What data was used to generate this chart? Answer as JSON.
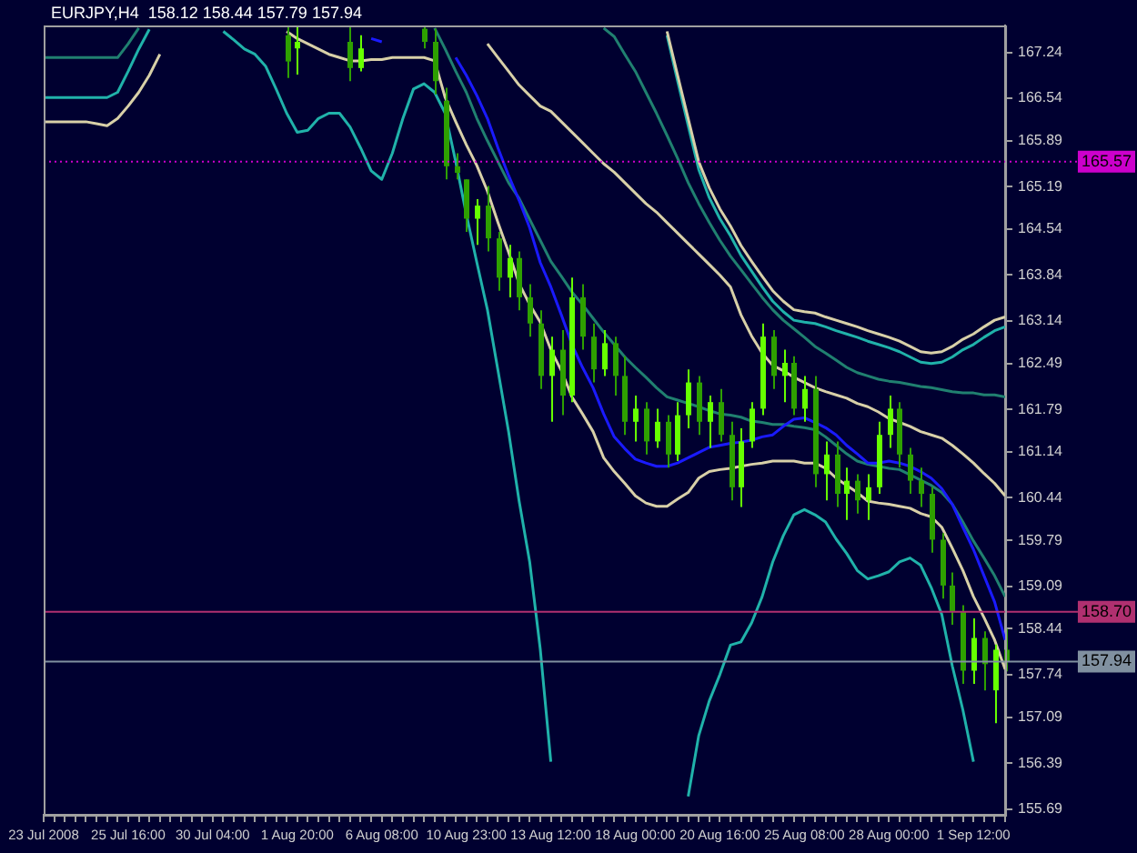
{
  "chart_data": {
    "type": "candlestick",
    "title": "EURJPY,H4  158.12 158.44 157.79 157.94",
    "colors": [
      null,
      null,
      null,
      null,
      null,
      null,
      null,
      null,
      null,
      null,
      null,
      null,
      null,
      null,
      null,
      null,
      null,
      null,
      null,
      null,
      null,
      null,
      null,
      "#2ea000",
      "#66ff00",
      null,
      null,
      null,
      null,
      "#2ea000",
      "#66ff00",
      null,
      null,
      null,
      null,
      null,
      "#2ea000",
      "#2ea000",
      "#2ea000",
      "#2ea000",
      "#2ea000",
      "#66ff00",
      "#2ea000",
      "#2ea000",
      "#66ff00",
      "#2ea000",
      "#2ea000",
      "#2ea000",
      "#66ff00",
      "#2ea000",
      "#66ff00",
      "#2ea000",
      "#2ea000",
      "#66ff00",
      "#2ea000",
      "#2ea000",
      "#66ff00",
      "#2ea000",
      "#66ff00",
      "#2ea000",
      "#66ff00",
      "#66ff00",
      "#2ea000",
      "#66ff00",
      "#2ea000",
      "#2ea000",
      "#66ff00",
      "#66ff00",
      "#66ff00",
      "#2ea000",
      "#66ff00",
      "#2ea000",
      "#66ff00",
      "#2ea000",
      "#66ff00",
      "#2ea000",
      "#66ff00",
      "#2ea000",
      "#66ff00",
      "#66ff00",
      "#66ff00",
      "#2ea000",
      "#2ea000",
      "#2ea000",
      "#2ea000",
      "#2ea000",
      "#2ea000",
      "#2ea000",
      "#66ff00",
      "#2ea000",
      "#66ff00",
      "#2ea000"
    ],
    "marker": "none",
    "categories": [
      "23 Jul 2008",
      null,
      null,
      null,
      null,
      null,
      null,
      null,
      "25 Jul 16:00",
      null,
      null,
      null,
      null,
      null,
      null,
      null,
      "30 Jul 04:00",
      null,
      null,
      null,
      null,
      null,
      null,
      null,
      "1 Aug 20:00",
      null,
      null,
      null,
      null,
      null,
      null,
      null,
      "6 Aug 08:00",
      null,
      null,
      null,
      null,
      null,
      null,
      null,
      "10 Aug 23:00",
      null,
      null,
      null,
      null,
      null,
      null,
      null,
      "13 Aug 12:00",
      null,
      null,
      null,
      null,
      null,
      null,
      null,
      "18 Aug 00:00",
      null,
      null,
      null,
      null,
      null,
      null,
      null,
      "20 Aug 16:00",
      null,
      null,
      null,
      null,
      null,
      null,
      null,
      "25 Aug 08:00",
      null,
      null,
      null,
      null,
      null,
      null,
      null,
      "28 Aug 00:00",
      null,
      null,
      null,
      null,
      null,
      null,
      null,
      "1 Sep 12:00",
      null,
      null,
      null
    ],
    "ohlc": [
      null,
      null,
      null,
      null,
      null,
      null,
      null,
      null,
      null,
      null,
      null,
      null,
      null,
      null,
      null,
      null,
      null,
      null,
      null,
      null,
      null,
      null,
      null,
      [
        167.5,
        167.64,
        166.85,
        167.1
      ],
      [
        167.3,
        167.64,
        166.9,
        167.4
      ],
      null,
      null,
      null,
      null,
      [
        167.4,
        167.64,
        166.8,
        167.0
      ],
      [
        167.0,
        167.5,
        166.95,
        167.3
      ],
      null,
      null,
      null,
      null,
      null,
      [
        167.6,
        167.64,
        167.3,
        167.4
      ],
      [
        167.4,
        167.6,
        166.6,
        166.8
      ],
      [
        166.5,
        166.7,
        165.3,
        165.5
      ],
      [
        165.5,
        165.7,
        165.3,
        165.4
      ],
      [
        165.3,
        165.3,
        164.5,
        164.7
      ],
      [
        164.7,
        165.0,
        164.3,
        164.9
      ],
      [
        164.9,
        165.2,
        164.2,
        164.4
      ],
      [
        164.4,
        164.5,
        163.6,
        163.8
      ],
      [
        163.8,
        164.3,
        163.5,
        164.1
      ],
      [
        164.1,
        164.2,
        163.3,
        163.5
      ],
      [
        163.5,
        163.7,
        162.9,
        163.1
      ],
      [
        163.1,
        163.3,
        162.1,
        162.3
      ],
      [
        162.3,
        162.9,
        161.6,
        162.7
      ],
      [
        162.7,
        163.0,
        161.7,
        162.0
      ],
      [
        162.0,
        163.8,
        161.9,
        163.5
      ],
      [
        163.5,
        163.7,
        162.7,
        162.9
      ],
      [
        162.9,
        163.1,
        162.2,
        162.4
      ],
      [
        162.4,
        163.0,
        162.3,
        162.8
      ],
      [
        162.8,
        162.9,
        162.0,
        162.3
      ],
      [
        162.3,
        162.6,
        161.4,
        161.6
      ],
      [
        161.6,
        162.0,
        161.3,
        161.8
      ],
      [
        161.8,
        161.9,
        161.1,
        161.3
      ],
      [
        161.3,
        161.8,
        161.2,
        161.6
      ],
      [
        161.6,
        161.7,
        160.9,
        161.1
      ],
      [
        161.1,
        161.9,
        161.0,
        161.7
      ],
      [
        161.7,
        162.4,
        161.5,
        162.2
      ],
      [
        162.2,
        162.3,
        161.4,
        161.6
      ],
      [
        161.6,
        162.0,
        161.2,
        161.9
      ],
      [
        161.9,
        162.1,
        161.3,
        161.4
      ],
      [
        161.4,
        161.6,
        160.4,
        160.6
      ],
      [
        160.6,
        161.5,
        160.3,
        161.3
      ],
      [
        161.3,
        161.9,
        161.2,
        161.8
      ],
      [
        161.8,
        163.1,
        161.7,
        162.9
      ],
      [
        162.9,
        163.0,
        162.1,
        162.3
      ],
      [
        162.3,
        162.7,
        161.9,
        162.5
      ],
      [
        162.5,
        162.6,
        161.7,
        161.8
      ],
      [
        161.8,
        162.3,
        161.6,
        162.1
      ],
      [
        162.1,
        162.3,
        160.6,
        160.8
      ],
      [
        160.8,
        161.3,
        160.4,
        161.1
      ],
      [
        161.1,
        161.3,
        160.3,
        160.5
      ],
      [
        160.5,
        160.9,
        160.1,
        160.7
      ],
      [
        160.7,
        160.8,
        160.2,
        160.4
      ],
      [
        160.4,
        160.8,
        160.1,
        160.6
      ],
      [
        160.6,
        161.6,
        160.5,
        161.4
      ],
      [
        161.4,
        162.0,
        161.2,
        161.8
      ],
      [
        161.8,
        161.9,
        160.9,
        161.1
      ],
      [
        161.1,
        161.2,
        160.5,
        160.7
      ],
      [
        160.7,
        160.9,
        160.3,
        160.5
      ],
      [
        160.5,
        160.6,
        159.6,
        159.8
      ],
      [
        159.8,
        159.9,
        158.9,
        159.1
      ],
      [
        159.1,
        159.3,
        158.5,
        158.7
      ],
      [
        158.7,
        158.8,
        157.6,
        157.8
      ],
      [
        157.8,
        158.6,
        157.6,
        158.3
      ],
      [
        158.3,
        158.4,
        157.5,
        157.9
      ],
      [
        157.5,
        158.2,
        157.0,
        158.12
      ],
      [
        158.12,
        158.44,
        157.79,
        157.94
      ]
    ],
    "series": [
      {
        "type": "line",
        "color": "#1a1aff",
        "values": [
          null,
          null,
          null,
          null,
          null,
          null,
          null,
          null,
          null,
          null,
          null,
          null,
          null,
          null,
          null,
          null,
          null,
          null,
          null,
          null,
          null,
          null,
          null,
          null,
          null,
          null,
          null,
          null,
          null,
          null,
          null,
          167.45,
          167.4,
          null,
          null,
          null,
          null,
          null,
          null,
          167.16,
          166.89,
          166.58,
          166.23,
          165.78,
          165.36,
          164.98,
          164.56,
          164.03,
          163.66,
          163.23,
          162.78,
          162.43,
          162.12,
          161.72,
          161.37,
          161.19,
          161.03,
          160.97,
          160.92,
          160.92,
          160.97,
          161.05,
          161.13,
          161.21,
          161.24,
          161.27,
          161.29,
          161.32,
          161.37,
          161.4,
          161.53,
          161.64,
          161.66,
          161.59,
          161.51,
          161.4,
          161.24,
          161.11,
          160.97,
          160.97,
          161.0,
          160.97,
          160.92,
          160.84,
          160.74,
          160.58,
          160.34,
          159.99,
          159.65,
          159.25,
          158.85,
          158.27
        ]
      },
      {
        "type": "line",
        "color": "#d8d0a8",
        "values": [
          166.18,
          166.18,
          166.18,
          166.18,
          166.18,
          166.15,
          166.12,
          166.23,
          166.42,
          166.63,
          166.89,
          167.21,
          null,
          null,
          null,
          null,
          null,
          null,
          null,
          null,
          null,
          null,
          null,
          167.56,
          167.45,
          167.37,
          167.29,
          167.21,
          167.16,
          167.11,
          167.11,
          167.13,
          167.13,
          167.16,
          167.16,
          167.16,
          167.16,
          167.11,
          166.55,
          166.18,
          165.83,
          165.51,
          165.12,
          164.64,
          164.19,
          163.71,
          163.39,
          163.12,
          162.7,
          162.38,
          161.98,
          161.72,
          161.45,
          161.05,
          160.84,
          160.66,
          160.47,
          160.36,
          160.31,
          160.31,
          160.42,
          160.52,
          160.74,
          160.84,
          160.87,
          160.89,
          160.92,
          160.95,
          160.97,
          161.0,
          161.0,
          161.0,
          160.97,
          160.97,
          160.89,
          160.74,
          160.63,
          160.52,
          160.39,
          160.36,
          160.34,
          160.31,
          160.28,
          160.2,
          160.15,
          159.99,
          159.67,
          159.33,
          158.93,
          158.61,
          158.27,
          157.82
        ]
      },
      {
        "type": "line",
        "color": "#d8d0a8",
        "values": [
          null,
          null,
          null,
          null,
          null,
          null,
          null,
          null,
          null,
          null,
          null,
          null,
          null,
          null,
          null,
          null,
          null,
          null,
          null,
          null,
          null,
          null,
          null,
          null,
          null,
          null,
          null,
          null,
          null,
          null,
          null,
          null,
          null,
          null,
          null,
          null,
          null,
          null,
          null,
          null,
          null,
          null,
          167.37,
          167.16,
          166.95,
          166.74,
          166.58,
          166.42,
          166.34,
          166.18,
          166.02,
          165.86,
          165.7,
          165.54,
          165.41,
          165.25,
          165.09,
          164.93,
          164.8,
          164.64,
          164.48,
          164.32,
          164.16,
          164.0,
          163.84,
          163.66,
          163.23,
          162.91,
          162.65,
          162.46,
          162.38,
          162.28,
          162.2,
          162.12,
          162.06,
          162.01,
          161.96,
          161.88,
          161.83,
          161.75,
          161.65,
          161.59,
          161.53,
          161.45,
          161.4,
          161.35,
          161.24,
          161.11,
          160.97,
          160.81,
          160.66,
          160.47
        ]
      },
      {
        "type": "line",
        "color": "#d8d0a8",
        "values": [
          null,
          null,
          null,
          null,
          null,
          null,
          null,
          null,
          null,
          null,
          null,
          null,
          null,
          null,
          null,
          null,
          null,
          null,
          null,
          null,
          null,
          null,
          null,
          null,
          null,
          null,
          null,
          null,
          null,
          null,
          null,
          null,
          null,
          null,
          null,
          null,
          null,
          null,
          null,
          null,
          null,
          null,
          null,
          null,
          null,
          null,
          null,
          null,
          null,
          null,
          null,
          null,
          null,
          null,
          null,
          null,
          null,
          null,
          null,
          167.56,
          166.89,
          166.23,
          165.57,
          165.17,
          164.85,
          164.59,
          164.29,
          164.05,
          163.82,
          163.6,
          163.44,
          163.31,
          163.28,
          163.26,
          163.2,
          163.15,
          163.1,
          163.05,
          162.99,
          162.94,
          162.89,
          162.83,
          162.75,
          162.67,
          162.65,
          162.67,
          162.75,
          162.86,
          162.94,
          163.05,
          163.15,
          163.2
        ]
      },
      {
        "type": "line",
        "color": "#20b2aa",
        "values": [
          null,
          null,
          null,
          null,
          null,
          null,
          null,
          null,
          null,
          null,
          null,
          null,
          null,
          null,
          null,
          null,
          null,
          null,
          null,
          null,
          null,
          null,
          null,
          null,
          null,
          null,
          null,
          null,
          null,
          null,
          null,
          null,
          null,
          null,
          null,
          null,
          null,
          null,
          null,
          null,
          null,
          null,
          null,
          null,
          null,
          null,
          null,
          null,
          null,
          null,
          null,
          null,
          null,
          null,
          null,
          null,
          null,
          null,
          null,
          167.5,
          166.8,
          166.12,
          165.45,
          165.02,
          164.7,
          164.44,
          164.14,
          163.9,
          163.66,
          163.44,
          163.28,
          163.15,
          163.12,
          163.1,
          163.05,
          162.99,
          162.94,
          162.89,
          162.83,
          162.78,
          162.73,
          162.67,
          162.59,
          162.51,
          162.49,
          162.51,
          162.59,
          162.7,
          162.78,
          162.89,
          162.99,
          163.05
        ]
      },
      {
        "type": "line",
        "color": "#20b2aa",
        "values": [
          166.55,
          166.55,
          166.55,
          166.55,
          166.55,
          166.55,
          166.55,
          166.63,
          166.95,
          167.29,
          167.59,
          null,
          null,
          null,
          null,
          null,
          null,
          167.56,
          167.43,
          167.29,
          167.21,
          167.03,
          166.68,
          166.31,
          166.02,
          166.05,
          166.23,
          166.31,
          166.31,
          166.1,
          165.78,
          165.43,
          165.3,
          165.7,
          166.23,
          166.68,
          166.76,
          166.63,
          166.31,
          165.57,
          164.77,
          164.03,
          163.31,
          162.38,
          161.45,
          160.39,
          159.46,
          158.13,
          156.41,
          null,
          null,
          null,
          null,
          null,
          null,
          null,
          null,
          null,
          null,
          null,
          null,
          155.88,
          156.81,
          157.34,
          157.74,
          158.19,
          158.24,
          158.53,
          158.93,
          159.46,
          159.86,
          160.18,
          160.26,
          160.18,
          160.07,
          159.81,
          159.59,
          159.33,
          159.2,
          159.25,
          159.31,
          159.46,
          159.52,
          159.41,
          159.07,
          158.66,
          157.87,
          157.2,
          156.41,
          null,
          null,
          null
        ]
      },
      {
        "type": "line",
        "color": "#208070",
        "values": [
          null,
          null,
          null,
          null,
          null,
          null,
          null,
          null,
          null,
          null,
          null,
          null,
          null,
          null,
          null,
          null,
          null,
          null,
          null,
          null,
          null,
          null,
          null,
          null,
          null,
          null,
          null,
          null,
          null,
          null,
          null,
          null,
          null,
          null,
          null,
          null,
          null,
          null,
          null,
          null,
          null,
          null,
          null,
          null,
          null,
          null,
          null,
          null,
          null,
          null,
          null,
          null,
          null,
          167.61,
          167.48,
          167.21,
          166.95,
          166.63,
          166.31,
          165.97,
          165.62,
          165.25,
          164.93,
          164.64,
          164.37,
          164.13,
          163.92,
          163.71,
          163.5,
          163.31,
          163.15,
          163.02,
          162.89,
          162.75,
          162.65,
          162.54,
          162.43,
          162.35,
          162.3,
          162.25,
          162.22,
          162.2,
          162.17,
          162.14,
          162.12,
          162.09,
          162.06,
          162.04,
          162.04,
          162.01,
          162.01,
          161.98
        ]
      },
      {
        "type": "line",
        "color": "#208070",
        "values": [
          167.16,
          167.16,
          167.16,
          167.16,
          167.16,
          167.16,
          167.16,
          167.16,
          167.37,
          167.61,
          null,
          null,
          null,
          null,
          null,
          null,
          null,
          null,
          null,
          null,
          null,
          null,
          null,
          null,
          null,
          null,
          null,
          null,
          null,
          null,
          null,
          null,
          null,
          null,
          null,
          null,
          null,
          167.61,
          167.29,
          166.95,
          166.63,
          166.23,
          165.89,
          165.57,
          165.25,
          165.01,
          164.69,
          164.37,
          164.05,
          163.82,
          163.58,
          163.39,
          163.18,
          162.97,
          162.78,
          162.59,
          162.43,
          162.28,
          162.12,
          161.98,
          161.93,
          161.88,
          161.83,
          161.77,
          161.72,
          161.7,
          161.67,
          161.61,
          161.59,
          161.56,
          161.56,
          161.53,
          161.51,
          161.48,
          161.37,
          161.24,
          161.11,
          161.0,
          160.95,
          160.92,
          160.89,
          160.87,
          160.79,
          160.71,
          160.63,
          160.52,
          160.34,
          160.07,
          159.78,
          159.52,
          159.25,
          158.93
        ]
      }
    ],
    "ylim": [
      155.6,
      167.65
    ],
    "yticks": [
      155.69,
      156.39,
      157.09,
      157.74,
      158.44,
      159.09,
      159.79,
      160.44,
      161.14,
      161.79,
      162.49,
      163.14,
      163.84,
      164.54,
      165.19,
      165.89,
      166.54,
      167.24
    ],
    "ref_lines": [
      {
        "axis": "y",
        "value": 165.57,
        "label": "165.57",
        "color": "#cc00cc",
        "line_style": "dotted"
      },
      {
        "axis": "y",
        "value": 158.7,
        "label": "158.70",
        "color": "#b03070",
        "line_style": "solid"
      },
      {
        "axis": "y",
        "value": 157.94,
        "label": "157.94",
        "color": "#8090a0",
        "line_style": "solid"
      }
    ]
  }
}
